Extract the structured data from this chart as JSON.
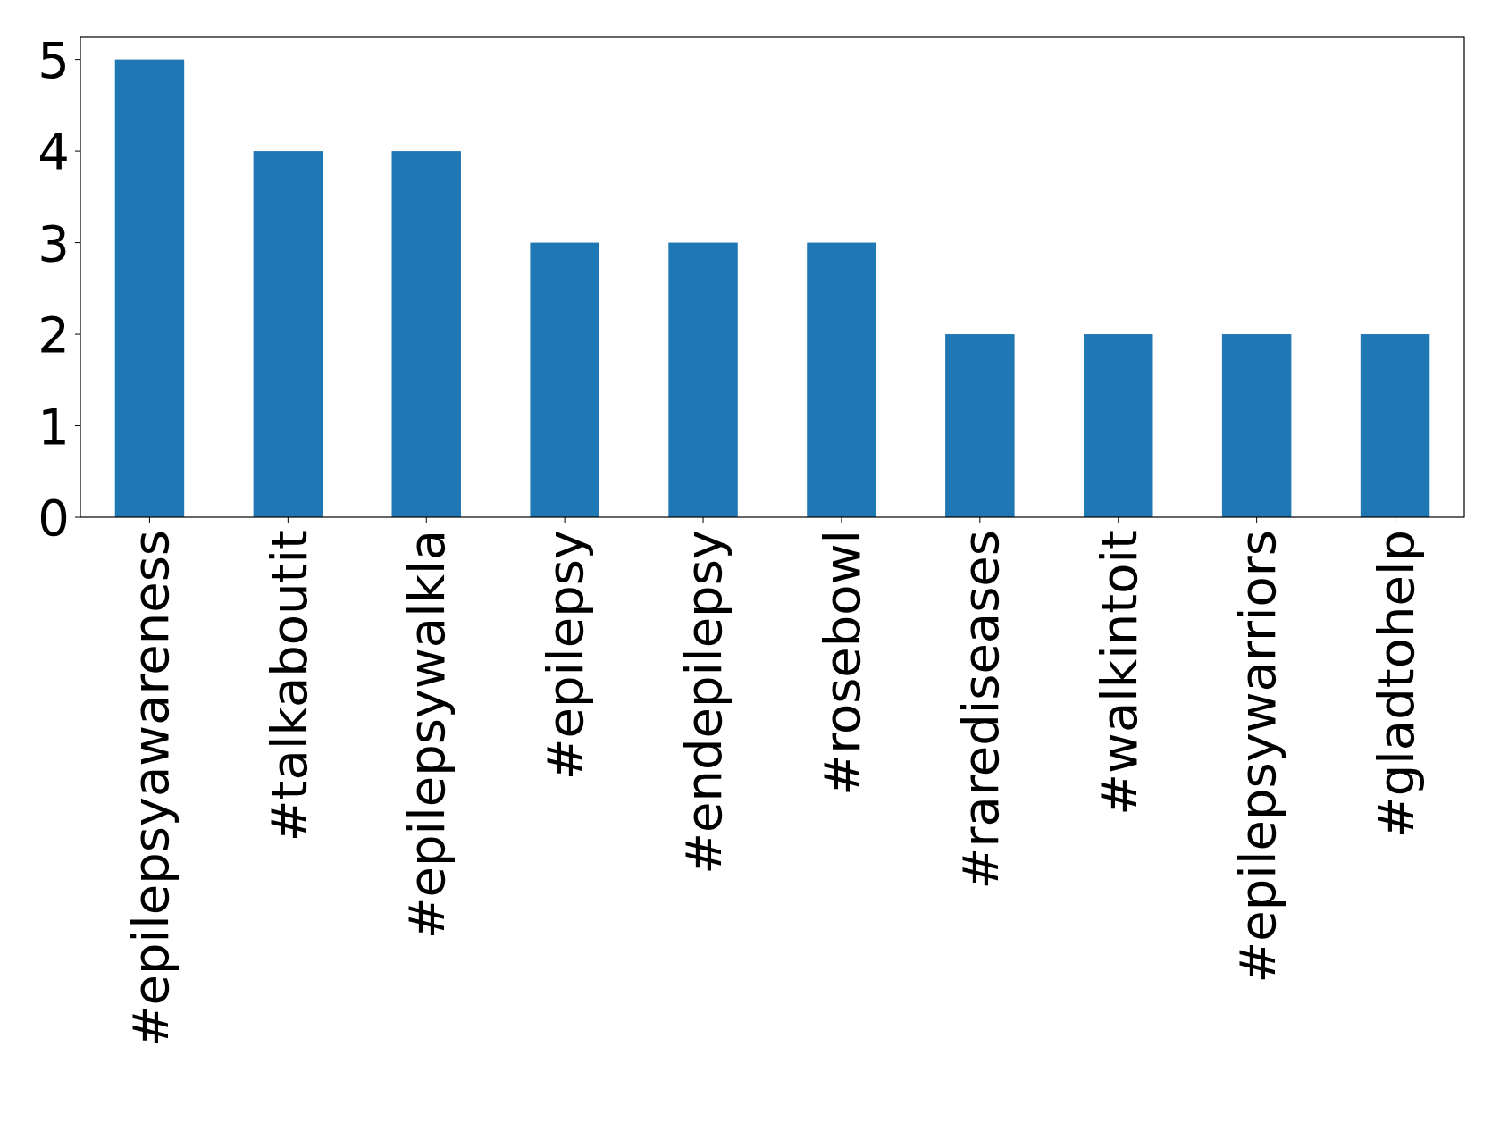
{
  "chart_data": {
    "type": "bar",
    "categories": [
      "#epilepsyawareness",
      "#talkaboutit",
      "#epilepsywalkla",
      "#epilepsy",
      "#endepilepsy",
      "#rosebowl",
      "#rarediseases",
      "#walkintoit",
      "#epilepsywarriors",
      "#gladtohelp"
    ],
    "values": [
      5,
      4,
      4,
      3,
      3,
      3,
      2,
      2,
      2,
      2
    ],
    "color": "#1f77b4",
    "ylim": [
      0,
      5.25
    ],
    "yticks": [
      0,
      1,
      2,
      3,
      4,
      5
    ],
    "grid": false
  }
}
